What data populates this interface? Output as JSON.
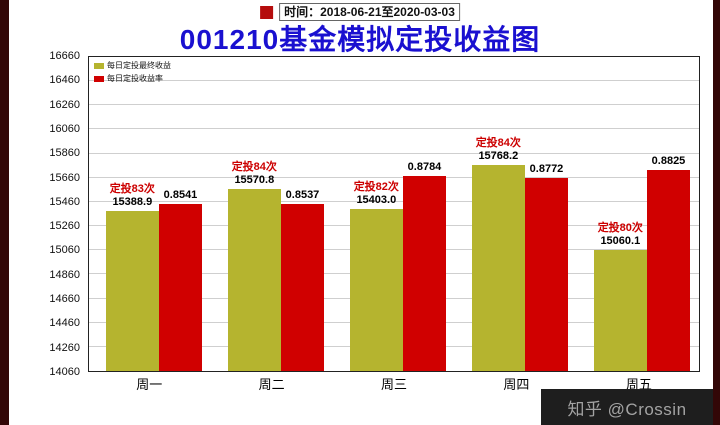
{
  "header": {
    "time_label": "时间：2018-06-21至2020-03-03",
    "title": "001210基金模拟定投收益图"
  },
  "watermark": "知乎 @Crossin",
  "colors": {
    "title": "#1a10d0",
    "bar_yellow": "#b5b42f",
    "bar_red": "#d00000",
    "count_label": "#cc0000",
    "edge_strip": "#330707",
    "watermark_bg": "#1e1e1e",
    "watermark_text": "#a3a3a3"
  },
  "chart_data": {
    "type": "bar",
    "title": "001210基金模拟定投收益图",
    "categories": [
      "周一",
      "周二",
      "周三",
      "周四",
      "周五"
    ],
    "series": [
      {
        "name": "每日定投最终收益",
        "color": "#b5b42f",
        "values": [
          15388.9,
          15570.8,
          15403.0,
          15768.2,
          15060.1
        ],
        "value_labels": [
          "15388.9",
          "15570.8",
          "15403.0",
          "15768.2",
          "15060.1"
        ],
        "count_labels": [
          "定投83次",
          "定投84次",
          "定投82次",
          "定投84次",
          "定投80次"
        ]
      },
      {
        "name": "每日定投收益率",
        "color": "#d00000",
        "rate_labels": [
          "0.8541",
          "0.8537",
          "0.8784",
          "0.8772",
          "0.8825"
        ],
        "display_values": [
          15445,
          15440,
          15675,
          15662,
          15722
        ]
      }
    ],
    "ylim": [
      14060,
      16660
    ],
    "ytick_step": 200,
    "grid": true,
    "legend_position": "top-left",
    "xlabel": "",
    "ylabel": ""
  }
}
